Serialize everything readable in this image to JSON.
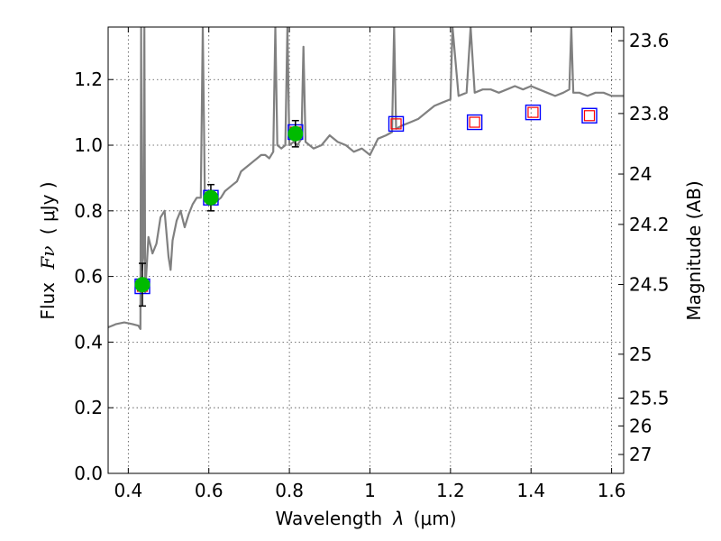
{
  "chart_data": {
    "type": "line",
    "xlabel": "Wavelength",
    "xlabel_symbol": "λ",
    "xlabel_unit": "(μm)",
    "ylabel": "Flux",
    "ylabel_symbol": "Fν",
    "ylabel_unit": "( μJy )",
    "y2label": "Magnitude (AB)",
    "xlim": [
      0.35,
      1.63
    ],
    "ylim": [
      0.0,
      1.36
    ],
    "grid": true,
    "x_ticks": [
      0.4,
      0.6,
      0.8,
      1.0,
      1.2,
      1.4,
      1.6
    ],
    "x_tick_labels": [
      "0.4",
      "0.6",
      "0.8",
      "1",
      "1.2",
      "1.4",
      "1.6"
    ],
    "y_ticks": [
      0.0,
      0.2,
      0.4,
      0.6,
      0.8,
      1.0,
      1.2
    ],
    "y_tick_labels": [
      "0.0",
      "0.2",
      "0.4",
      "0.6",
      "0.8",
      "1.0",
      "1.2"
    ],
    "y2_ticks": [
      {
        "mag": 23.6,
        "label": "23.6"
      },
      {
        "mag": 23.8,
        "label": "23.8"
      },
      {
        "mag": 24.0,
        "label": "24"
      },
      {
        "mag": 24.2,
        "label": "24.2"
      },
      {
        "mag": 24.5,
        "label": "24.5"
      },
      {
        "mag": 25.0,
        "label": "25"
      },
      {
        "mag": 25.5,
        "label": "25.5"
      },
      {
        "mag": 26.0,
        "label": "26"
      },
      {
        "mag": 27.0,
        "label": "27"
      }
    ],
    "colors": {
      "template": "#808080",
      "observed_marker": "#00bb00",
      "model_box": "#0000ff",
      "model_inner": "#ff0000",
      "errorbar": "#000000"
    },
    "template_spectrum": [
      [
        0.35,
        0.445
      ],
      [
        0.37,
        0.455
      ],
      [
        0.39,
        0.46
      ],
      [
        0.41,
        0.455
      ],
      [
        0.425,
        0.45
      ],
      [
        0.43,
        0.44
      ],
      [
        0.432,
        1.36
      ],
      [
        0.434,
        0.62
      ],
      [
        0.437,
        0.66
      ],
      [
        0.44,
        1.36
      ],
      [
        0.442,
        0.55
      ],
      [
        0.45,
        0.72
      ],
      [
        0.46,
        0.67
      ],
      [
        0.47,
        0.7
      ],
      [
        0.48,
        0.78
      ],
      [
        0.49,
        0.8
      ],
      [
        0.5,
        0.66
      ],
      [
        0.505,
        0.62
      ],
      [
        0.51,
        0.71
      ],
      [
        0.52,
        0.77
      ],
      [
        0.53,
        0.8
      ],
      [
        0.54,
        0.75
      ],
      [
        0.55,
        0.79
      ],
      [
        0.56,
        0.82
      ],
      [
        0.57,
        0.84
      ],
      [
        0.58,
        0.84
      ],
      [
        0.585,
        1.36
      ],
      [
        0.59,
        0.84
      ],
      [
        0.6,
        0.85
      ],
      [
        0.61,
        0.84
      ],
      [
        0.62,
        0.83
      ],
      [
        0.63,
        0.84
      ],
      [
        0.64,
        0.86
      ],
      [
        0.65,
        0.87
      ],
      [
        0.66,
        0.88
      ],
      [
        0.67,
        0.89
      ],
      [
        0.68,
        0.92
      ],
      [
        0.69,
        0.93
      ],
      [
        0.7,
        0.94
      ],
      [
        0.71,
        0.95
      ],
      [
        0.72,
        0.96
      ],
      [
        0.73,
        0.97
      ],
      [
        0.74,
        0.97
      ],
      [
        0.75,
        0.96
      ],
      [
        0.76,
        0.98
      ],
      [
        0.765,
        1.36
      ],
      [
        0.77,
        1.0
      ],
      [
        0.78,
        0.99
      ],
      [
        0.79,
        1.0
      ],
      [
        0.795,
        1.36
      ],
      [
        0.8,
        1.0
      ],
      [
        0.81,
        1.01
      ],
      [
        0.82,
        1.0
      ],
      [
        0.83,
        1.02
      ],
      [
        0.835,
        1.3
      ],
      [
        0.84,
        1.01
      ],
      [
        0.86,
        0.99
      ],
      [
        0.88,
        1.0
      ],
      [
        0.9,
        1.03
      ],
      [
        0.92,
        1.01
      ],
      [
        0.94,
        1.0
      ],
      [
        0.96,
        0.98
      ],
      [
        0.98,
        0.99
      ],
      [
        1.0,
        0.97
      ],
      [
        1.02,
        1.02
      ],
      [
        1.04,
        1.03
      ],
      [
        1.055,
        1.04
      ],
      [
        1.06,
        1.36
      ],
      [
        1.065,
        1.05
      ],
      [
        1.08,
        1.06
      ],
      [
        1.1,
        1.07
      ],
      [
        1.12,
        1.08
      ],
      [
        1.14,
        1.1
      ],
      [
        1.16,
        1.12
      ],
      [
        1.18,
        1.13
      ],
      [
        1.2,
        1.14
      ],
      [
        1.205,
        1.36
      ],
      [
        1.22,
        1.15
      ],
      [
        1.24,
        1.16
      ],
      [
        1.25,
        1.36
      ],
      [
        1.26,
        1.16
      ],
      [
        1.28,
        1.17
      ],
      [
        1.3,
        1.17
      ],
      [
        1.32,
        1.16
      ],
      [
        1.34,
        1.17
      ],
      [
        1.36,
        1.18
      ],
      [
        1.38,
        1.17
      ],
      [
        1.4,
        1.18
      ],
      [
        1.42,
        1.17
      ],
      [
        1.44,
        1.16
      ],
      [
        1.46,
        1.15
      ],
      [
        1.48,
        1.16
      ],
      [
        1.495,
        1.17
      ],
      [
        1.5,
        1.36
      ],
      [
        1.505,
        1.16
      ],
      [
        1.52,
        1.16
      ],
      [
        1.54,
        1.15
      ],
      [
        1.56,
        1.16
      ],
      [
        1.58,
        1.16
      ],
      [
        1.6,
        1.15
      ],
      [
        1.63,
        1.15
      ]
    ],
    "observed_points": [
      {
        "x": 0.435,
        "y": 0.575,
        "yerr": 0.065
      },
      {
        "x": 0.605,
        "y": 0.84,
        "yerr": 0.04
      },
      {
        "x": 0.815,
        "y": 1.035,
        "yerr": 0.04
      }
    ],
    "model_points": [
      {
        "x": 0.435,
        "y": 0.57
      },
      {
        "x": 0.605,
        "y": 0.84
      },
      {
        "x": 0.815,
        "y": 1.04
      },
      {
        "x": 1.065,
        "y": 1.065
      },
      {
        "x": 1.26,
        "y": 1.07
      },
      {
        "x": 1.405,
        "y": 1.1
      },
      {
        "x": 1.545,
        "y": 1.09
      }
    ]
  }
}
